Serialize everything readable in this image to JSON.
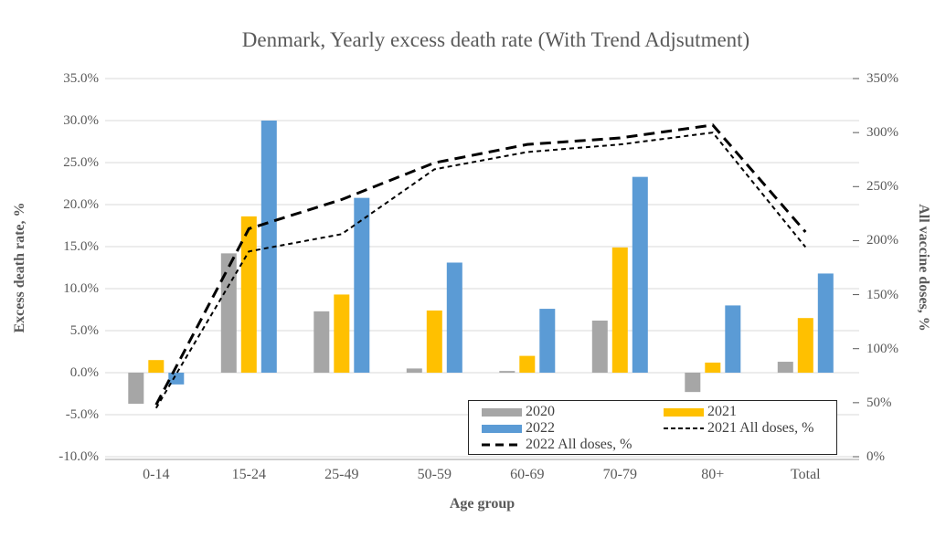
{
  "title": "Denmark, Yearly excess death rate (With Trend Adjsutment)",
  "chart_data": {
    "type": "combo-bar-line",
    "categories": [
      "0-14",
      "15-24",
      "25-49",
      "50-59",
      "60-69",
      "70-79",
      "80+",
      "Total"
    ],
    "x_axis": {
      "label": "Age group"
    },
    "left_axis": {
      "label": "Excess death rate, %",
      "min": -10,
      "max": 35,
      "step": 5,
      "tick_labels": [
        "35.0%",
        "30.0%",
        "25.0%",
        "20.0%",
        "15.0%",
        "10.0%",
        "5.0%",
        "0.0%",
        "-5.0%",
        "-10.0%"
      ],
      "tick_values": [
        35,
        30,
        25,
        20,
        15,
        10,
        5,
        0,
        -5,
        -10
      ]
    },
    "right_axis": {
      "label": "All vaccine doses, %",
      "min": 0,
      "max": 350,
      "step": 50,
      "tick_labels": [
        "350%",
        "300%",
        "250%",
        "200%",
        "150%",
        "100%",
        "50%",
        "0%"
      ],
      "tick_values": [
        350,
        300,
        250,
        200,
        150,
        100,
        50,
        0
      ]
    },
    "series": [
      {
        "name": "2020",
        "type": "bar",
        "axis": "left",
        "color": "#A6A6A6",
        "values": [
          -3.7,
          14.2,
          7.3,
          0.5,
          0.2,
          6.2,
          -2.3,
          1.3
        ]
      },
      {
        "name": "2021",
        "type": "bar",
        "axis": "left",
        "color": "#FFC000",
        "values": [
          1.5,
          18.6,
          9.3,
          7.4,
          2.0,
          14.9,
          1.2,
          6.5
        ]
      },
      {
        "name": "2022",
        "type": "bar",
        "axis": "left",
        "color": "#5B9BD5",
        "values": [
          -1.4,
          30.0,
          20.8,
          13.1,
          7.6,
          23.3,
          8.0,
          11.8
        ]
      },
      {
        "name": "2021 All doses, %",
        "type": "line",
        "axis": "right",
        "color": "#000000",
        "dash": "fine",
        "values": [
          45,
          190,
          206,
          266,
          282,
          289,
          300,
          194
        ]
      },
      {
        "name": "2022 All doses, %",
        "type": "line",
        "axis": "right",
        "color": "#000000",
        "dash": "long",
        "values": [
          48,
          211,
          238,
          272,
          289,
          295,
          307,
          208
        ]
      }
    ],
    "legend": {
      "items": [
        {
          "label": "2020",
          "swatch": "bar",
          "color": "#A6A6A6"
        },
        {
          "label": "2021",
          "swatch": "bar",
          "color": "#FFC000"
        },
        {
          "label": "2022",
          "swatch": "bar",
          "color": "#5B9BD5"
        },
        {
          "label": "2021 All doses, %",
          "swatch": "line-fine",
          "color": "#000000"
        },
        {
          "label": "2022 All doses, %",
          "swatch": "line-long",
          "color": "#000000"
        }
      ]
    },
    "colors": {
      "grid": "#D9D9D9",
      "axis_line": "#BFBFBF",
      "tick_mark": "#595959",
      "text": "#595959"
    }
  }
}
